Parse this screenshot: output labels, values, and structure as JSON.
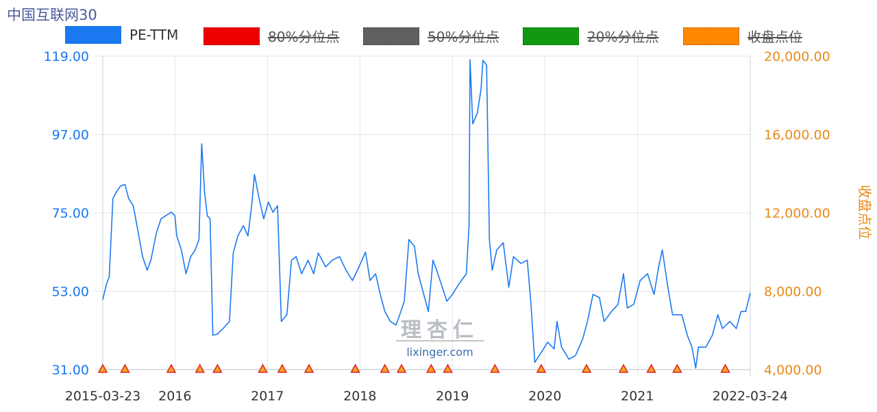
{
  "title": "中国互联网30",
  "legend": [
    {
      "label": "PE-TTM",
      "color": "#1a78f0",
      "enabled": true
    },
    {
      "label": "80%分位点",
      "color": "#ee0000",
      "enabled": false
    },
    {
      "label": "50%分位点",
      "color": "#606060",
      "enabled": false
    },
    {
      "label": "20%分位点",
      "color": "#119911",
      "enabled": false
    },
    {
      "label": "收盘点位",
      "color": "#ff8800",
      "enabled": false
    }
  ],
  "watermark": {
    "logo": "理杏仁",
    "url": "lixinger.com"
  },
  "chart_data": {
    "type": "line",
    "title": "中国互联网30",
    "xlim": [
      2015.22,
      2022.22
    ],
    "x_tick_labels": [
      {
        "x": 2015.22,
        "label": "2015-03-23"
      },
      {
        "x": 2016.0,
        "label": "2016"
      },
      {
        "x": 2017.0,
        "label": "2017"
      },
      {
        "x": 2018.0,
        "label": "2018"
      },
      {
        "x": 2019.0,
        "label": "2019"
      },
      {
        "x": 2020.0,
        "label": "2020"
      },
      {
        "x": 2021.0,
        "label": "2021"
      },
      {
        "x": 2022.22,
        "label": "2022-03-24"
      }
    ],
    "y_left": {
      "ticks": [
        "31.00",
        "53.00",
        "75.00",
        "97.00",
        "119.00"
      ],
      "lim": [
        31,
        119
      ],
      "color": "#1a78f0"
    },
    "y_right": {
      "label": "收盘点位",
      "ticks": [
        "4,000.00",
        "8,000.00",
        "12,000.00",
        "16,000.00",
        "20,000.00"
      ],
      "lim": [
        4000,
        20000
      ],
      "color": "#e88a1a"
    },
    "grid": true,
    "series": [
      {
        "name": "PE-TTM",
        "color": "#1a78f0",
        "points": [
          [
            2015.22,
            50.6
          ],
          [
            2015.26,
            55
          ],
          [
            2015.29,
            57
          ],
          [
            2015.33,
            79
          ],
          [
            2015.37,
            81
          ],
          [
            2015.41,
            82.5
          ],
          [
            2015.46,
            83
          ],
          [
            2015.5,
            79
          ],
          [
            2015.55,
            77
          ],
          [
            2015.59,
            71.4
          ],
          [
            2015.65,
            62.7
          ],
          [
            2015.7,
            58.9
          ],
          [
            2015.74,
            61.7
          ],
          [
            2015.8,
            69.4
          ],
          [
            2015.85,
            73.3
          ],
          [
            2015.9,
            74.2
          ],
          [
            2015.96,
            75.2
          ],
          [
            2016.0,
            74.2
          ],
          [
            2016.02,
            68.5
          ],
          [
            2016.07,
            64.6
          ],
          [
            2016.12,
            57.9
          ],
          [
            2016.17,
            62.7
          ],
          [
            2016.22,
            64.6
          ],
          [
            2016.26,
            67.5
          ],
          [
            2016.29,
            94.4
          ],
          [
            2016.32,
            81
          ],
          [
            2016.35,
            74.2
          ],
          [
            2016.38,
            73.3
          ],
          [
            2016.41,
            40.6
          ],
          [
            2016.46,
            41
          ],
          [
            2016.52,
            42.5
          ],
          [
            2016.59,
            44.5
          ],
          [
            2016.63,
            63.7
          ],
          [
            2016.68,
            68.5
          ],
          [
            2016.74,
            71.4
          ],
          [
            2016.79,
            68.5
          ],
          [
            2016.83,
            77
          ],
          [
            2016.86,
            85.8
          ],
          [
            2016.91,
            79
          ],
          [
            2016.96,
            73.3
          ],
          [
            2017.01,
            78
          ],
          [
            2017.06,
            75.2
          ],
          [
            2017.11,
            77
          ],
          [
            2017.15,
            44.5
          ],
          [
            2017.21,
            46.4
          ],
          [
            2017.26,
            61.7
          ],
          [
            2017.31,
            62.7
          ],
          [
            2017.37,
            57.9
          ],
          [
            2017.44,
            61.7
          ],
          [
            2017.5,
            57.9
          ],
          [
            2017.55,
            63.7
          ],
          [
            2017.63,
            59.8
          ],
          [
            2017.7,
            61.7
          ],
          [
            2017.78,
            62.7
          ],
          [
            2017.85,
            58.9
          ],
          [
            2017.92,
            56
          ],
          [
            2017.99,
            59.8
          ],
          [
            2018.06,
            64
          ],
          [
            2018.11,
            56
          ],
          [
            2018.17,
            57.9
          ],
          [
            2018.22,
            52.1
          ],
          [
            2018.27,
            47.3
          ],
          [
            2018.33,
            44.5
          ],
          [
            2018.39,
            43.5
          ],
          [
            2018.43,
            46.4
          ],
          [
            2018.48,
            50.2
          ],
          [
            2018.53,
            67.5
          ],
          [
            2018.59,
            65.6
          ],
          [
            2018.63,
            57.9
          ],
          [
            2018.69,
            52.1
          ],
          [
            2018.74,
            47.3
          ],
          [
            2018.79,
            61.7
          ],
          [
            2018.83,
            58.9
          ],
          [
            2018.89,
            54.1
          ],
          [
            2018.94,
            50.2
          ],
          [
            2019.0,
            52.1
          ],
          [
            2019.07,
            55
          ],
          [
            2019.15,
            57.9
          ],
          [
            2019.18,
            71.4
          ],
          [
            2019.19,
            118
          ],
          [
            2019.22,
            100
          ],
          [
            2019.27,
            103
          ],
          [
            2019.31,
            109.8
          ],
          [
            2019.33,
            117.8
          ],
          [
            2019.37,
            116.5
          ],
          [
            2019.4,
            67.5
          ],
          [
            2019.43,
            58.9
          ],
          [
            2019.48,
            64.6
          ],
          [
            2019.55,
            66.6
          ],
          [
            2019.61,
            54.1
          ],
          [
            2019.66,
            62.7
          ],
          [
            2019.74,
            60.8
          ],
          [
            2019.81,
            61.7
          ],
          [
            2019.85,
            49.3
          ],
          [
            2019.89,
            33
          ],
          [
            2019.96,
            35.8
          ],
          [
            2020.03,
            38.7
          ],
          [
            2020.1,
            36.8
          ],
          [
            2020.13,
            44.5
          ],
          [
            2020.18,
            37.3
          ],
          [
            2020.26,
            33.9
          ],
          [
            2020.33,
            34.9
          ],
          [
            2020.41,
            39.7
          ],
          [
            2020.46,
            44.5
          ],
          [
            2020.52,
            52.1
          ],
          [
            2020.59,
            51.2
          ],
          [
            2020.64,
            44.5
          ],
          [
            2020.72,
            47.3
          ],
          [
            2020.79,
            49.3
          ],
          [
            2020.85,
            57.9
          ],
          [
            2020.89,
            48.3
          ],
          [
            2020.96,
            49.3
          ],
          [
            2021.03,
            56
          ],
          [
            2021.11,
            57.9
          ],
          [
            2021.18,
            52.1
          ],
          [
            2021.23,
            59.8
          ],
          [
            2021.27,
            64.6
          ],
          [
            2021.33,
            54.1
          ],
          [
            2021.38,
            46.4
          ],
          [
            2021.48,
            46.4
          ],
          [
            2021.54,
            40.6
          ],
          [
            2021.59,
            37.3
          ],
          [
            2021.63,
            31.4
          ],
          [
            2021.66,
            37.3
          ],
          [
            2021.74,
            37.3
          ],
          [
            2021.81,
            40.6
          ],
          [
            2021.87,
            46.4
          ],
          [
            2021.92,
            42.5
          ],
          [
            2022.0,
            44.5
          ],
          [
            2022.07,
            42.5
          ],
          [
            2022.12,
            47.3
          ],
          [
            2022.17,
            47.3
          ],
          [
            2022.22,
            52.5
          ]
        ]
      }
    ],
    "event_markers": [
      2015.22,
      2015.46,
      2015.96,
      2016.27,
      2016.46,
      2016.95,
      2017.16,
      2017.45,
      2017.95,
      2018.27,
      2018.45,
      2018.77,
      2018.95,
      2019.46,
      2019.96,
      2020.45,
      2020.85,
      2021.15,
      2021.43,
      2021.95
    ]
  }
}
